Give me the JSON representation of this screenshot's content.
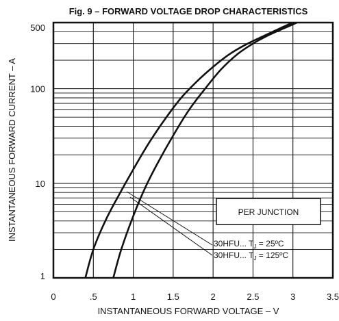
{
  "chart_data": {
    "type": "line",
    "title": "Fig. 9 – FORWARD VOLTAGE DROP CHARACTERISTICS",
    "xlabel": "INSTANTANEOUS FORWARD VOLTAGE – V",
    "ylabel": "INSTANTANEOUS FORWARD CURRENT – A",
    "xlim": [
      0,
      3.5
    ],
    "ylim": [
      1,
      500
    ],
    "yscale": "log",
    "grid": true,
    "x_tick_labels": [
      "0",
      ".5",
      "1",
      "1.5",
      "2",
      "2.5",
      "3",
      "3.5"
    ],
    "x_tick_values": [
      0,
      0.5,
      1,
      1.5,
      2,
      2.5,
      3,
      3.5
    ],
    "y_tick_labels": [
      "1",
      "10",
      "100",
      "500"
    ],
    "y_tick_values": [
      1,
      10,
      100,
      500
    ],
    "legend_title": "PER JUNCTION",
    "series": [
      {
        "name": "30HFU... Tj = 25ºC",
        "label_prefix": "30HFU... T",
        "label_sub": "J",
        "label_suffix": " = 25ºC",
        "x": [
          0.75,
          0.85,
          1.0,
          1.15,
          1.3,
          1.5,
          1.7,
          1.9,
          2.1,
          2.3,
          2.5,
          2.7,
          2.9,
          3.05
        ],
        "y": [
          1,
          2,
          4.5,
          9,
          16,
          32,
          60,
          100,
          160,
          230,
          300,
          370,
          440,
          500
        ]
      },
      {
        "name": "30HFU... Tj = 125ºC",
        "label_prefix": "30HFU... T",
        "label_sub": "J",
        "label_suffix": " = 125ºC",
        "x": [
          0.4,
          0.5,
          0.65,
          0.8,
          1.0,
          1.2,
          1.4,
          1.6,
          1.8,
          2.0,
          2.2,
          2.4,
          2.6,
          2.8,
          3.0
        ],
        "y": [
          1,
          2,
          4,
          7,
          14,
          27,
          48,
          80,
          120,
          170,
          230,
          290,
          350,
          420,
          500
        ]
      }
    ]
  }
}
